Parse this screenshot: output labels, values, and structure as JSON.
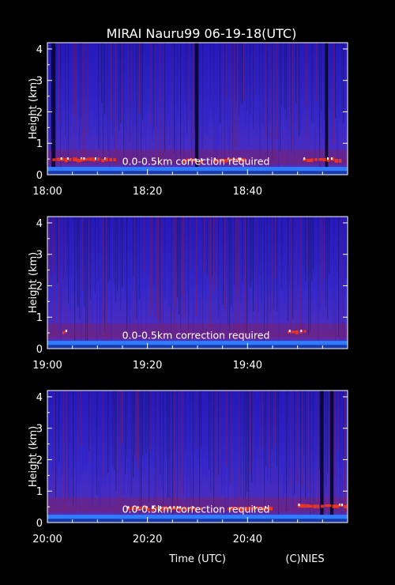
{
  "title": "MIRAI Nauru99 06-19-18(UTC)",
  "footer": {
    "xlabel": "Time (UTC)",
    "credit": "(C)NIES"
  },
  "colors": {
    "background": "#000000",
    "field": "#3a2ad0",
    "surface_band": "#2f7cff",
    "noise_dark": "#14106a",
    "noise_red": "#8a1a4a",
    "cloud": "#ff3a10",
    "cloud_core": "#ffffff"
  },
  "chart_data": [
    {
      "type": "heatmap",
      "ylabel": "Height (km)",
      "ylim": [
        0,
        4.2
      ],
      "yticks": [
        "0",
        "1",
        "2",
        "3",
        "4"
      ],
      "xlim_minutes": [
        0,
        60
      ],
      "xticks": [
        "18:00",
        "18:20",
        "18:40"
      ],
      "annotation": "0.0-0.5km correction required",
      "features": [
        {
          "kind": "cloud",
          "start_min": 1,
          "end_min": 14,
          "height_km": 0.45
        },
        {
          "kind": "cloud",
          "start_min": 27,
          "end_min": 31,
          "height_km": 0.42
        },
        {
          "kind": "cloud",
          "start_min": 33,
          "end_min": 40,
          "height_km": 0.44
        },
        {
          "kind": "cloud",
          "start_min": 51,
          "end_min": 59,
          "height_km": 0.45
        },
        {
          "kind": "dark_column",
          "start_min": 0.8,
          "end_min": 1.6
        },
        {
          "kind": "dark_column",
          "start_min": 29.5,
          "end_min": 30.2
        },
        {
          "kind": "dark_column",
          "start_min": 55.5,
          "end_min": 56.1
        }
      ]
    },
    {
      "type": "heatmap",
      "ylabel": "Height (km)",
      "ylim": [
        0,
        4.2
      ],
      "yticks": [
        "0",
        "1",
        "2",
        "3",
        "4"
      ],
      "xlim_minutes": [
        0,
        60
      ],
      "xticks": [
        "19:00",
        "19:20",
        "19:40"
      ],
      "annotation": "0.0-0.5km correction required",
      "features": [
        {
          "kind": "cloud",
          "start_min": 3,
          "end_min": 4,
          "height_km": 0.5
        },
        {
          "kind": "cloud",
          "start_min": 48,
          "end_min": 52,
          "height_km": 0.5
        }
      ]
    },
    {
      "type": "heatmap",
      "ylabel": "Height (km)",
      "ylim": [
        0,
        4.2
      ],
      "yticks": [
        "0",
        "1",
        "2",
        "3",
        "4"
      ],
      "xlim_minutes": [
        0,
        60
      ],
      "xticks": [
        "20:00",
        "20:20",
        "20:40"
      ],
      "annotation": "0.0-0.5km correction required",
      "features": [
        {
          "kind": "cloud",
          "start_min": 16,
          "end_min": 31,
          "height_km": 0.42
        },
        {
          "kind": "cloud",
          "start_min": 36,
          "end_min": 45,
          "height_km": 0.42
        },
        {
          "kind": "cloud",
          "start_min": 50,
          "end_min": 60,
          "height_km": 0.5
        },
        {
          "kind": "dark_column",
          "start_min": 54.5,
          "end_min": 55.2
        },
        {
          "kind": "dark_column",
          "start_min": 56.5,
          "end_min": 57.2
        }
      ]
    }
  ]
}
